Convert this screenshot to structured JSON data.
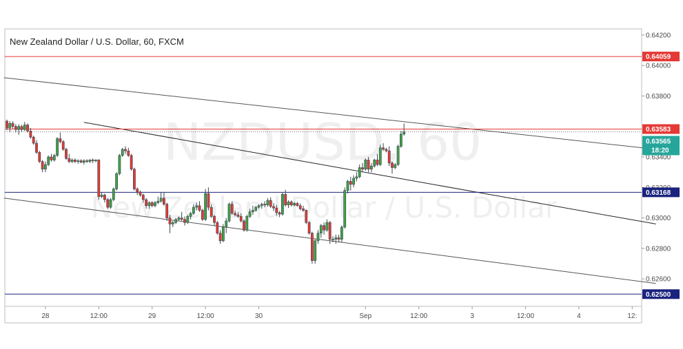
{
  "chart_data": {
    "type": "candlestick",
    "title": "New Zealand Dollar / U.S. Dollar, 60, FXCM",
    "watermark_symbol": "NZDUSD, 60",
    "watermark_name": "New Zealand Dollar / U.S. Dollar",
    "ylim": [
      0.6242,
      0.6424
    ],
    "y_ticks": [
      "0.64200",
      "0.64000",
      "0.63800",
      "0.63400",
      "0.63200",
      "0.63000",
      "0.62800",
      "0.62600"
    ],
    "x_tick_labels": [
      "28",
      "12:00",
      "29",
      "12:00",
      "30",
      "Sep",
      "12:00",
      "3",
      "12:00",
      "4",
      "12:"
    ],
    "x_tick_index": [
      13,
      31,
      49,
      67,
      85,
      121,
      139,
      157,
      175,
      193,
      211
    ],
    "candles": [
      [
        0.63635,
        0.63645,
        0.63575,
        0.6359
      ],
      [
        0.6359,
        0.63635,
        0.63565,
        0.6362
      ],
      [
        0.6362,
        0.63635,
        0.63585,
        0.636
      ],
      [
        0.636,
        0.63615,
        0.6356,
        0.6358
      ],
      [
        0.6358,
        0.63615,
        0.63545,
        0.636
      ],
      [
        0.636,
        0.6361,
        0.63565,
        0.6358
      ],
      [
        0.6358,
        0.6363,
        0.6357,
        0.6361
      ],
      [
        0.6361,
        0.6362,
        0.6356,
        0.6357
      ],
      [
        0.6357,
        0.6359,
        0.6352,
        0.6353
      ],
      [
        0.6353,
        0.6354,
        0.6348,
        0.6349
      ],
      [
        0.6349,
        0.6351,
        0.6342,
        0.6343
      ],
      [
        0.6343,
        0.6344,
        0.6336,
        0.6337
      ],
      [
        0.6337,
        0.6338,
        0.633,
        0.6332
      ],
      [
        0.6332,
        0.6337,
        0.633,
        0.6335
      ],
      [
        0.6335,
        0.6341,
        0.6334,
        0.634
      ],
      [
        0.634,
        0.6342,
        0.6337,
        0.6338
      ],
      [
        0.6338,
        0.6342,
        0.6337,
        0.6341
      ],
      [
        0.6341,
        0.6353,
        0.634,
        0.6352
      ],
      [
        0.6352,
        0.6356,
        0.6349,
        0.635
      ],
      [
        0.635,
        0.6351,
        0.6344,
        0.6345
      ],
      [
        0.6345,
        0.6346,
        0.6338,
        0.6339
      ],
      [
        0.6339,
        0.6342,
        0.6336,
        0.6337
      ],
      [
        0.6337,
        0.6339,
        0.6336,
        0.6338
      ],
      [
        0.6338,
        0.6339,
        0.6336,
        0.6337
      ],
      [
        0.6337,
        0.63385,
        0.63355,
        0.63375
      ],
      [
        0.63375,
        0.63385,
        0.6336,
        0.63365
      ],
      [
        0.63365,
        0.63385,
        0.6335,
        0.63375
      ],
      [
        0.63375,
        0.63385,
        0.6336,
        0.6337
      ],
      [
        0.6337,
        0.63385,
        0.6336,
        0.6338
      ],
      [
        0.6338,
        0.6339,
        0.6336,
        0.63375
      ],
      [
        0.63375,
        0.63385,
        0.63365,
        0.6338
      ],
      [
        0.6338,
        0.63385,
        0.6312,
        0.6314
      ],
      [
        0.6314,
        0.6317,
        0.6313,
        0.6315
      ],
      [
        0.6315,
        0.6316,
        0.631,
        0.6312
      ],
      [
        0.6312,
        0.6313,
        0.6306,
        0.6307
      ],
      [
        0.6307,
        0.6313,
        0.6306,
        0.6312
      ],
      [
        0.6312,
        0.632,
        0.6311,
        0.6319
      ],
      [
        0.6319,
        0.633,
        0.6318,
        0.6329
      ],
      [
        0.6329,
        0.6342,
        0.6328,
        0.6341
      ],
      [
        0.6341,
        0.6346,
        0.634,
        0.6345
      ],
      [
        0.6345,
        0.6347,
        0.6342,
        0.6344
      ],
      [
        0.6344,
        0.6346,
        0.634,
        0.6341
      ],
      [
        0.6341,
        0.6342,
        0.6331,
        0.6332
      ],
      [
        0.6332,
        0.6333,
        0.6318,
        0.6319
      ],
      [
        0.6319,
        0.632,
        0.6315,
        0.6317
      ],
      [
        0.6317,
        0.6318,
        0.6314,
        0.6315
      ],
      [
        0.6315,
        0.6316,
        0.631,
        0.6312
      ],
      [
        0.6312,
        0.6313,
        0.6306,
        0.6308
      ],
      [
        0.6308,
        0.6311,
        0.6306,
        0.631
      ],
      [
        0.631,
        0.6311,
        0.6307,
        0.6308
      ],
      [
        0.6308,
        0.6311,
        0.6307,
        0.631
      ],
      [
        0.631,
        0.6314,
        0.6309,
        0.6311
      ],
      [
        0.6311,
        0.6317,
        0.631,
        0.6313
      ],
      [
        0.6313,
        0.6317,
        0.6308,
        0.6309
      ],
      [
        0.6309,
        0.631,
        0.6298,
        0.63
      ],
      [
        0.63,
        0.6302,
        0.629,
        0.6296
      ],
      [
        0.6296,
        0.6298,
        0.6294,
        0.6297
      ],
      [
        0.6297,
        0.63,
        0.6296,
        0.6299
      ],
      [
        0.6299,
        0.6301,
        0.6298,
        0.63
      ],
      [
        0.63,
        0.6304,
        0.6298,
        0.6299
      ],
      [
        0.6299,
        0.6301,
        0.6295,
        0.6297
      ],
      [
        0.6297,
        0.6302,
        0.6296,
        0.6301
      ],
      [
        0.6301,
        0.6304,
        0.6299,
        0.6303
      ],
      [
        0.6303,
        0.6309,
        0.6302,
        0.6307
      ],
      [
        0.6307,
        0.631,
        0.6305,
        0.6308
      ],
      [
        0.6308,
        0.6311,
        0.6304,
        0.6305
      ],
      [
        0.6305,
        0.6306,
        0.6298,
        0.6299
      ],
      [
        0.6299,
        0.6319,
        0.6298,
        0.6316
      ],
      [
        0.6316,
        0.632,
        0.6305,
        0.6307
      ],
      [
        0.6307,
        0.6309,
        0.63,
        0.6301
      ],
      [
        0.6301,
        0.6302,
        0.6295,
        0.6297
      ],
      [
        0.6297,
        0.6298,
        0.6289,
        0.629
      ],
      [
        0.629,
        0.6292,
        0.6283,
        0.6285
      ],
      [
        0.6285,
        0.6296,
        0.6284,
        0.6294
      ],
      [
        0.6294,
        0.63,
        0.629,
        0.6298
      ],
      [
        0.6298,
        0.631,
        0.6297,
        0.6309
      ],
      [
        0.6309,
        0.6311,
        0.6302,
        0.6303
      ],
      [
        0.6303,
        0.6305,
        0.6301,
        0.6302
      ],
      [
        0.6302,
        0.6304,
        0.63,
        0.6301
      ],
      [
        0.6301,
        0.6303,
        0.6297,
        0.6298
      ],
      [
        0.6298,
        0.6299,
        0.6291,
        0.6292
      ],
      [
        0.6292,
        0.6302,
        0.6291,
        0.6301
      ],
      [
        0.6301,
        0.6306,
        0.63,
        0.6304
      ],
      [
        0.6304,
        0.6308,
        0.6302,
        0.6305
      ],
      [
        0.6305,
        0.6308,
        0.6304,
        0.6307
      ],
      [
        0.6307,
        0.6309,
        0.6306,
        0.6308
      ],
      [
        0.6308,
        0.631,
        0.6306,
        0.6309
      ],
      [
        0.6309,
        0.6311,
        0.6307,
        0.63085
      ],
      [
        0.63085,
        0.6313,
        0.63075,
        0.63115
      ],
      [
        0.63115,
        0.63135,
        0.63065,
        0.63075
      ],
      [
        0.63075,
        0.63095,
        0.63045,
        0.63065
      ],
      [
        0.63065,
        0.63085,
        0.63015,
        0.63035
      ],
      [
        0.63035,
        0.63045,
        0.63005,
        0.63025
      ],
      [
        0.63025,
        0.6317,
        0.63015,
        0.63155
      ],
      [
        0.63155,
        0.63185,
        0.63075,
        0.63085
      ],
      [
        0.63085,
        0.63115,
        0.63065,
        0.63105
      ],
      [
        0.63105,
        0.63115,
        0.63075,
        0.63085
      ],
      [
        0.63085,
        0.63105,
        0.63075,
        0.63095
      ],
      [
        0.63095,
        0.63105,
        0.63075,
        0.6308
      ],
      [
        0.6308,
        0.63095,
        0.6305,
        0.6306
      ],
      [
        0.6306,
        0.6308,
        0.6304,
        0.6305
      ],
      [
        0.6305,
        0.63055,
        0.6296,
        0.6297
      ],
      [
        0.6297,
        0.6298,
        0.6289,
        0.629
      ],
      [
        0.629,
        0.6291,
        0.627,
        0.6272
      ],
      [
        0.6272,
        0.6286,
        0.627,
        0.6285
      ],
      [
        0.6285,
        0.6292,
        0.6283,
        0.629
      ],
      [
        0.629,
        0.6296,
        0.6287,
        0.6295
      ],
      [
        0.6295,
        0.6297,
        0.6289,
        0.6292
      ],
      [
        0.6292,
        0.6299,
        0.6291,
        0.6297
      ],
      [
        0.6297,
        0.6298,
        0.6283,
        0.6286
      ],
      [
        0.6286,
        0.6288,
        0.6284,
        0.6286
      ],
      [
        0.6286,
        0.6289,
        0.6283,
        0.6287
      ],
      [
        0.6287,
        0.6289,
        0.6284,
        0.6286
      ],
      [
        0.6286,
        0.6295,
        0.6284,
        0.6294
      ],
      [
        0.6294,
        0.632,
        0.6293,
        0.6318
      ],
      [
        0.6318,
        0.6325,
        0.6316,
        0.6324
      ],
      [
        0.6324,
        0.6327,
        0.6318,
        0.6322
      ],
      [
        0.6322,
        0.6328,
        0.632,
        0.6326
      ],
      [
        0.6326,
        0.633,
        0.6324,
        0.6327
      ],
      [
        0.6327,
        0.6335,
        0.6326,
        0.6333
      ],
      [
        0.6333,
        0.6336,
        0.633,
        0.6332
      ],
      [
        0.6332,
        0.6339,
        0.6331,
        0.6338
      ],
      [
        0.6338,
        0.634,
        0.633,
        0.6332
      ],
      [
        0.6332,
        0.6336,
        0.633,
        0.6334
      ],
      [
        0.6334,
        0.6339,
        0.6333,
        0.6338
      ],
      [
        0.6338,
        0.6342,
        0.6334,
        0.6335
      ],
      [
        0.6335,
        0.6348,
        0.6334,
        0.6346
      ],
      [
        0.6346,
        0.6349,
        0.6344,
        0.6345
      ],
      [
        0.6345,
        0.6346,
        0.6343,
        0.6344
      ],
      [
        0.6344,
        0.6347,
        0.6334,
        0.6336
      ],
      [
        0.6336,
        0.6337,
        0.6329,
        0.6333
      ],
      [
        0.6333,
        0.6336,
        0.6332,
        0.6335
      ],
      [
        0.6335,
        0.6348,
        0.6334,
        0.6347
      ],
      [
        0.6347,
        0.6357,
        0.6346,
        0.6355
      ],
      [
        0.6355,
        0.6362,
        0.6354,
        0.63565
      ]
    ],
    "levels": [
      {
        "value": 0.64059,
        "label": "0.64059",
        "color": "#e53935"
      },
      {
        "value": 0.63583,
        "label": "0.63583",
        "color": "#e53935"
      },
      {
        "value": 0.63168,
        "label": "0.63168",
        "color": "#1a237e"
      },
      {
        "value": 0.625,
        "label": "0.62500",
        "color": "#1a237e"
      }
    ],
    "trendlines": [
      {
        "from": [
          -1,
          0.6392
        ],
        "to": [
          219,
          0.6345
        ],
        "color": "#555555"
      },
      {
        "from": [
          -1,
          0.6313
        ],
        "to": [
          219,
          0.6257
        ],
        "color": "#555555"
      },
      {
        "from": [
          26,
          0.63627
        ],
        "to": [
          219,
          0.6296
        ],
        "color": "#222222"
      }
    ],
    "last_price": {
      "value": 0.63565,
      "label": "0.63565",
      "timer": "18:20",
      "color": "#26a69a"
    },
    "colors": {
      "up": "#43a047",
      "down": "#e53935",
      "candle_outline": "#37474f"
    },
    "grid": false,
    "dotted_line_value": 0.63565
  }
}
